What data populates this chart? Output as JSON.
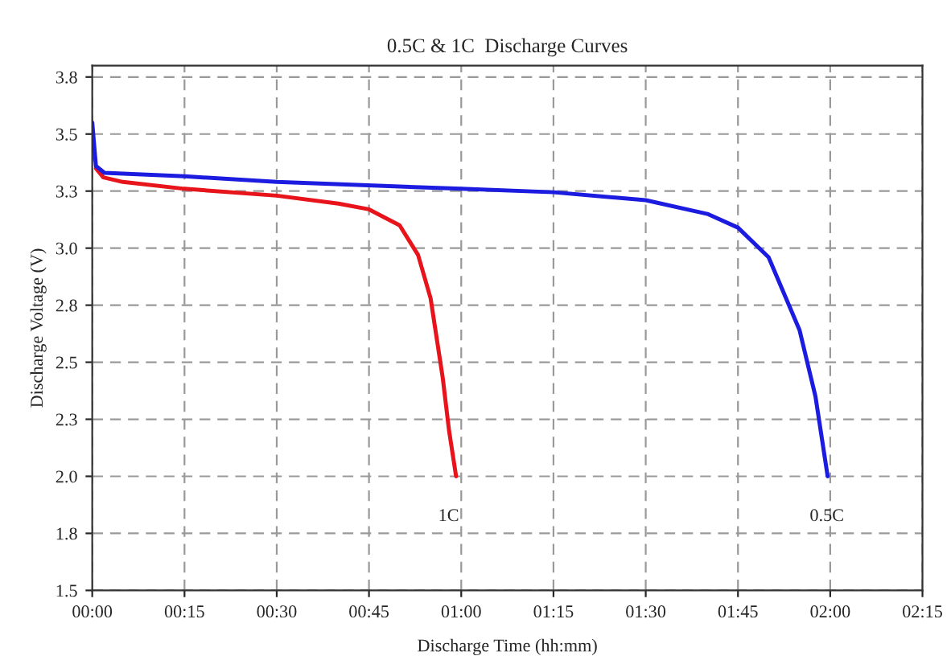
{
  "chart_data": {
    "type": "line",
    "title": "0.5C & 1C  Discharge Curves",
    "xlabel": "Discharge Time (hh:mm)",
    "ylabel": "Discharge Voltage (V)",
    "series": [
      {
        "name": "1C",
        "color": "#e8141c",
        "x": [
          0.01,
          0.03,
          0.083,
          0.25,
          0.5,
          0.667,
          0.75,
          0.833,
          0.883,
          0.917,
          0.95,
          0.967,
          0.986
        ],
        "values": [
          3.35,
          3.31,
          3.29,
          3.26,
          3.23,
          3.195,
          3.17,
          3.1,
          2.97,
          2.78,
          2.43,
          2.2,
          2.0
        ]
      },
      {
        "name": "0.5C",
        "color": "#1c1ce0",
        "x": [
          0,
          0.01,
          0.033,
          0.25,
          0.5,
          1.0,
          1.25,
          1.5,
          1.667,
          1.75,
          1.833,
          1.917,
          1.96,
          1.993
        ],
        "values": [
          3.55,
          3.36,
          3.33,
          3.315,
          3.29,
          3.26,
          3.245,
          3.21,
          3.15,
          3.09,
          2.96,
          2.64,
          2.35,
          2.0
        ]
      }
    ],
    "xlim": [
      0,
      2.25
    ],
    "xticks": [
      {
        "value": 0,
        "label": "00:00"
      },
      {
        "value": 0.25,
        "label": "00:15"
      },
      {
        "value": 0.5,
        "label": "00:30"
      },
      {
        "value": 0.75,
        "label": "00:45"
      },
      {
        "value": 1,
        "label": "01:00"
      },
      {
        "value": 1.25,
        "label": "01:15"
      },
      {
        "value": 1.5,
        "label": "01:30"
      },
      {
        "value": 1.75,
        "label": "01:45"
      },
      {
        "value": 2,
        "label": "02:00"
      },
      {
        "value": 2.25,
        "label": "02:15"
      }
    ],
    "ylim": [
      1.5,
      3.8
    ],
    "yticks": [
      1.5,
      {
        "value": 1.75,
        "label": "1.8"
      },
      {
        "value": 2,
        "label": "2.0"
      },
      {
        "value": 2.25,
        "label": "2.3"
      },
      2.5,
      {
        "value": 2.75,
        "label": "2.8"
      },
      {
        "value": 3,
        "label": "3.0"
      },
      {
        "value": 3.25,
        "label": "3.3"
      },
      3.5,
      {
        "value": 3.75,
        "label": "3.8"
      }
    ],
    "grid": true,
    "legend": false,
    "marker": "none",
    "line_style": "solid"
  }
}
